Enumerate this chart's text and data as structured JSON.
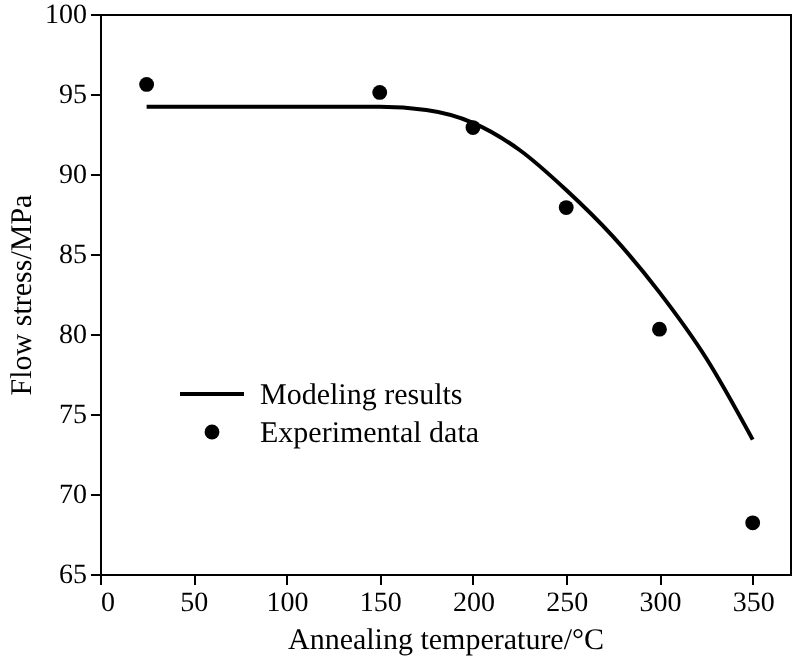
{
  "chart_data": {
    "type": "scatter",
    "xlabel": "Annealing temperature/°C",
    "ylabel": "Flow stress/MPa",
    "xlim": [
      0,
      370
    ],
    "xticks": [
      0,
      50,
      100,
      150,
      200,
      250,
      300,
      350
    ],
    "ylim": [
      65,
      100
    ],
    "yticks": [
      65,
      70,
      75,
      80,
      85,
      90,
      95,
      100
    ],
    "grid": false,
    "legend": "left",
    "series": [
      {
        "name": "Modeling results",
        "type": "line",
        "color": "#000000",
        "marker": "none",
        "line_style": "solid",
        "x": [
          25,
          50,
          100,
          150,
          175,
          200,
          225,
          250,
          275,
          300,
          325,
          350
        ],
        "values": [
          94.2,
          94.2,
          94.2,
          94.2,
          94.0,
          93.2,
          91.5,
          89.0,
          86.1,
          82.6,
          78.5,
          73.4
        ]
      },
      {
        "name": "Experimental data",
        "color": "#000000",
        "marker": "circle",
        "x": [
          25,
          150,
          200,
          250,
          300,
          350
        ],
        "values": [
          95.6,
          95.1,
          92.9,
          87.9,
          80.3,
          68.2
        ]
      }
    ]
  }
}
